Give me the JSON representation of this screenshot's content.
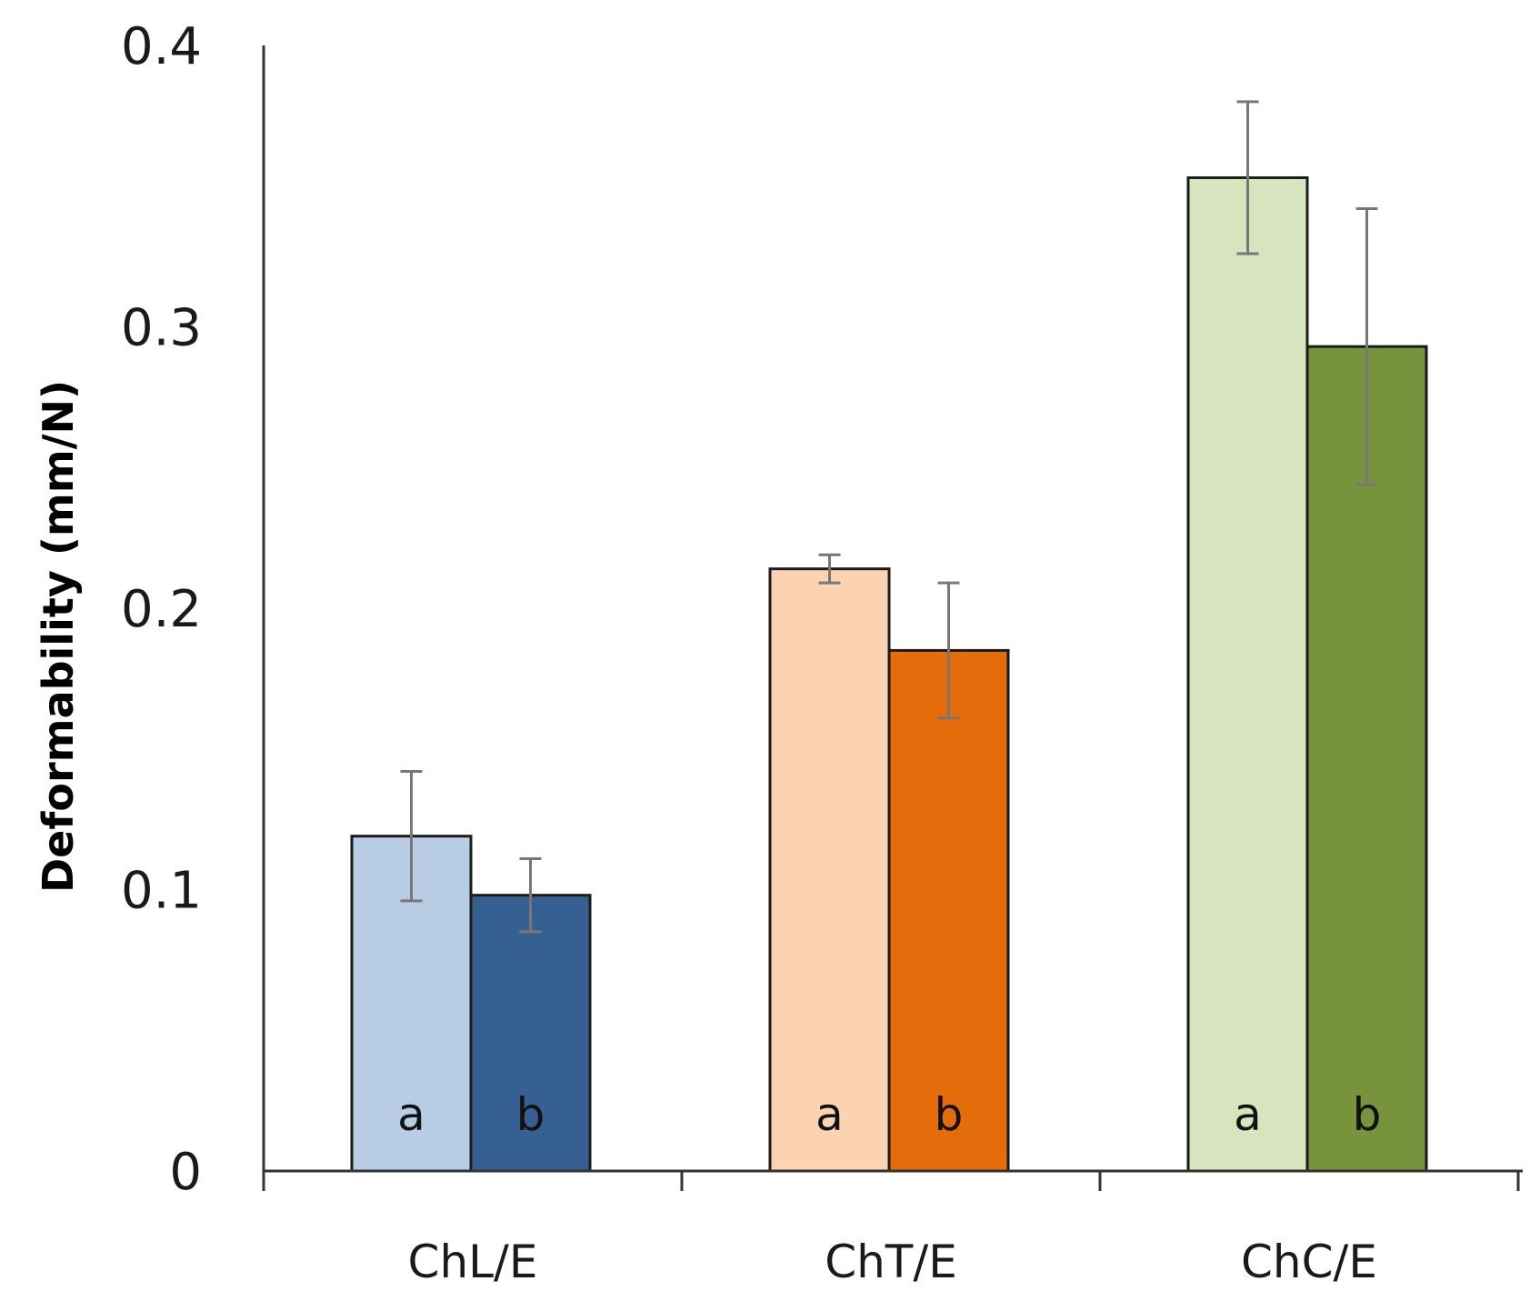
{
  "chart_data": {
    "type": "bar",
    "title": "",
    "xlabel": "",
    "ylabel": "Deformability (mm/N)",
    "ylim": [
      0,
      0.4
    ],
    "yticks": [
      {
        "value": 0,
        "label": "0"
      },
      {
        "value": 0.1,
        "label": "0.1"
      },
      {
        "value": 0.2,
        "label": "0.2"
      },
      {
        "value": 0.3,
        "label": "0.3"
      },
      {
        "value": 0.4,
        "label": "0.4"
      }
    ],
    "grid": false,
    "legend": "none",
    "categories": [
      "ChL/E",
      "ChT/E",
      "ChC/E"
    ],
    "series": [
      {
        "name": "a",
        "values": [
          0.119,
          0.214,
          0.353
        ],
        "errors": [
          0.023,
          0.005,
          0.027
        ],
        "colors": [
          "#B8CCE4",
          "#FBD2B2",
          "#D7E4BD"
        ]
      },
      {
        "name": "b",
        "values": [
          0.098,
          0.185,
          0.293
        ],
        "errors": [
          0.013,
          0.024,
          0.049
        ],
        "colors": [
          "#376092",
          "#E46C0A",
          "#77933C"
        ]
      }
    ],
    "bar_labels": [
      "a",
      "b"
    ]
  }
}
